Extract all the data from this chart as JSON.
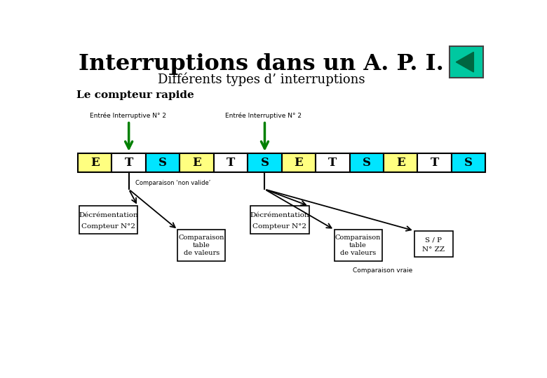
{
  "title": "Interruptions dans un A. P. I.",
  "subtitle": "Différents types d’ interruptions",
  "section": "Le compteur rapide",
  "cells": [
    {
      "label": "E",
      "color": "#ffff80"
    },
    {
      "label": "T",
      "color": "#ffffff"
    },
    {
      "label": "S",
      "color": "#00e5ff"
    },
    {
      "label": "E",
      "color": "#ffff80"
    },
    {
      "label": "T",
      "color": "#ffffff"
    },
    {
      "label": "S",
      "color": "#00e5ff"
    },
    {
      "label": "E",
      "color": "#ffff80"
    },
    {
      "label": "T",
      "color": "#ffffff"
    },
    {
      "label": "S",
      "color": "#00e5ff"
    },
    {
      "label": "E",
      "color": "#ffff80"
    },
    {
      "label": "T",
      "color": "#ffffff"
    },
    {
      "label": "S",
      "color": "#00e5ff"
    }
  ],
  "interrupt1_label": "Entrée Interruptive N° 2",
  "interrupt2_label": "Entrée Interruptive N° 2",
  "arrow_color": "#008000",
  "nav_bg": "#00c8a0",
  "nav_triangle": "#006640",
  "box1_text1": "Décrémentation",
  "box1_text2": "Compteur N°2",
  "box2_text1": "Comparaison",
  "box2_text2": "table",
  "box2_text3": "de valeurs",
  "box3_text1": "Décrémentation",
  "box3_text2": "Compteur N°2",
  "box4_text1": "Comparaison",
  "box4_text2": "table",
  "box4_text3": "de valeurs",
  "box5_text1": "S / P",
  "box5_text2": "N° ZZ",
  "comp_non_valide": "Comparaison ‘non valide’",
  "comp_vraie": "Comparaison vraie"
}
